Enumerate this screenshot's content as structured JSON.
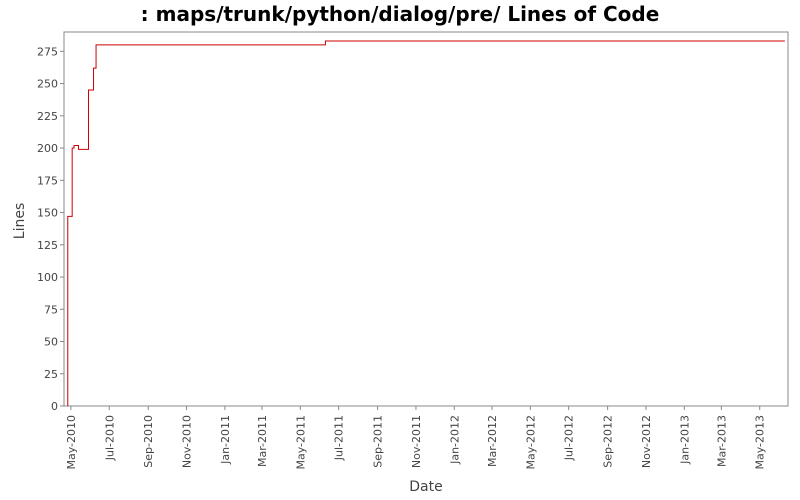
{
  "chart_data": {
    "type": "line",
    "title": ": maps/trunk/python/dialog/pre/ Lines of Code",
    "xlabel": "Date",
    "ylabel": "Lines",
    "ylim": [
      0,
      290
    ],
    "xlim": [
      "2010-04-20",
      "2013-06-15"
    ],
    "y_ticks": [
      0,
      25,
      50,
      75,
      100,
      125,
      150,
      175,
      200,
      225,
      250,
      275
    ],
    "x_ticks": [
      {
        "label": "May-2010",
        "date": "2010-05-01"
      },
      {
        "label": "Jul-2010",
        "date": "2010-07-01"
      },
      {
        "label": "Sep-2010",
        "date": "2010-09-01"
      },
      {
        "label": "Nov-2010",
        "date": "2010-11-01"
      },
      {
        "label": "Jan-2011",
        "date": "2011-01-01"
      },
      {
        "label": "Mar-2011",
        "date": "2011-03-01"
      },
      {
        "label": "May-2011",
        "date": "2011-05-01"
      },
      {
        "label": "Jul-2011",
        "date": "2011-07-01"
      },
      {
        "label": "Sep-2011",
        "date": "2011-09-01"
      },
      {
        "label": "Nov-2011",
        "date": "2011-11-01"
      },
      {
        "label": "Jan-2012",
        "date": "2012-01-01"
      },
      {
        "label": "Mar-2012",
        "date": "2012-03-01"
      },
      {
        "label": "May-2012",
        "date": "2012-05-01"
      },
      {
        "label": "Jul-2012",
        "date": "2012-07-01"
      },
      {
        "label": "Sep-2012",
        "date": "2012-09-01"
      },
      {
        "label": "Nov-2012",
        "date": "2012-11-01"
      },
      {
        "label": "Jan-2013",
        "date": "2013-01-01"
      },
      {
        "label": "Mar-2013",
        "date": "2013-03-01"
      },
      {
        "label": "May-2013",
        "date": "2013-05-01"
      }
    ],
    "series": [
      {
        "color": "#cc0000",
        "step": true,
        "points": [
          {
            "x": "2010-04-26",
            "y": 0
          },
          {
            "x": "2010-04-26",
            "y": 147
          },
          {
            "x": "2010-05-03",
            "y": 200
          },
          {
            "x": "2010-05-06",
            "y": 202
          },
          {
            "x": "2010-05-13",
            "y": 199
          },
          {
            "x": "2010-05-29",
            "y": 245
          },
          {
            "x": "2010-06-06",
            "y": 262
          },
          {
            "x": "2010-06-10",
            "y": 280
          },
          {
            "x": "2011-06-10",
            "y": 283
          },
          {
            "x": "2013-06-10",
            "y": 283
          }
        ]
      }
    ],
    "grid": false,
    "legend": "none"
  },
  "colors": {
    "line": "#cc0000",
    "axis": "#888888",
    "text": "#444444",
    "background": "#ffffff"
  }
}
